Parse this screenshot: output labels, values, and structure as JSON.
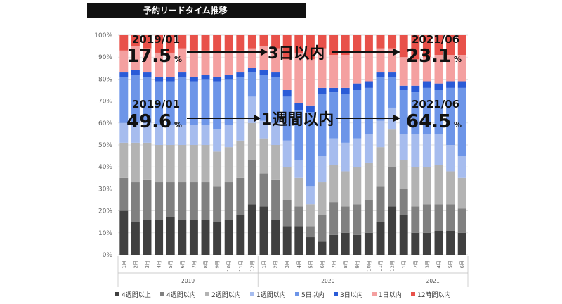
{
  "title": "予約リードタイム推移",
  "chart_data": {
    "type": "bar",
    "stacked": true,
    "normalized": true,
    "ylim": [
      0,
      100
    ],
    "ytick_labels": [
      "0%",
      "10%",
      "20%",
      "30%",
      "40%",
      "50%",
      "60%",
      "70%",
      "80%",
      "90%",
      "100%"
    ],
    "categories": [
      "1月",
      "2月",
      "3月",
      "4月",
      "5月",
      "6月",
      "7月",
      "8月",
      "9月",
      "10月",
      "11月",
      "12月",
      "1月",
      "2月",
      "3月",
      "4月",
      "5月",
      "6月",
      "7月",
      "8月",
      "9月",
      "10月",
      "11月",
      "12月",
      "1月",
      "2月",
      "3月",
      "4月",
      "5月",
      "6月"
    ],
    "year_groups": [
      {
        "label": "2019",
        "start": 0,
        "end": 11
      },
      {
        "label": "2020",
        "start": 12,
        "end": 23
      },
      {
        "label": "2021",
        "start": 24,
        "end": 29
      }
    ],
    "series": [
      {
        "name": "4週間以上",
        "color": "#404040",
        "values": [
          20,
          15,
          16,
          16,
          17,
          16,
          16,
          16,
          15,
          16,
          18,
          23,
          22,
          16,
          13,
          13,
          8,
          6,
          9,
          10,
          9,
          10,
          15,
          22,
          18,
          10,
          10,
          11,
          11,
          10
        ]
      },
      {
        "name": "4週間以内",
        "color": "#808080",
        "values": [
          15,
          18,
          18,
          17,
          16,
          17,
          17,
          17,
          16,
          17,
          17,
          20,
          15,
          18,
          12,
          9,
          5,
          12,
          15,
          12,
          14,
          15,
          16,
          18,
          12,
          12,
          13,
          12,
          12,
          11
        ]
      },
      {
        "name": "2週間以内",
        "color": "#b3b3b3",
        "values": [
          16,
          18,
          17,
          17,
          17,
          17,
          17,
          17,
          16,
          16,
          17,
          17,
          16,
          16,
          15,
          13,
          10,
          15,
          17,
          16,
          17,
          17,
          18,
          17,
          13,
          18,
          17,
          18,
          15,
          14
        ]
      },
      {
        "name": "1週間以内",
        "color": "#a6bcee",
        "values": [
          9,
          9,
          9,
          9,
          9,
          9,
          9,
          9,
          10,
          10,
          10,
          12,
          8,
          10,
          12,
          8,
          8,
          12,
          12,
          13,
          13,
          13,
          12,
          10,
          12,
          15,
          15,
          14,
          12,
          10
        ]
      },
      {
        "name": "5日以内",
        "color": "#6d95e8",
        "values": [
          21,
          22,
          21,
          20,
          20,
          22,
          20,
          21,
          22,
          21,
          19,
          11,
          21,
          21,
          20,
          23,
          34,
          28,
          21,
          22,
          22,
          21,
          20,
          14,
          20,
          19,
          21,
          20,
          26,
          31
        ]
      },
      {
        "name": "3日以内",
        "color": "#2a5bd7",
        "values": [
          2,
          2,
          2,
          2,
          2,
          2,
          2,
          2,
          2,
          2,
          2,
          2,
          2,
          2,
          3,
          3,
          3,
          3,
          2,
          3,
          3,
          3,
          2,
          2,
          2,
          3,
          3,
          3,
          3,
          3
        ]
      },
      {
        "name": "1日以内",
        "color": "#f4a0a0",
        "values": [
          10,
          11,
          11,
          11,
          11,
          11,
          12,
          11,
          11,
          11,
          10,
          9,
          11,
          11,
          14,
          23,
          21,
          18,
          15,
          15,
          14,
          13,
          11,
          11,
          13,
          12,
          11,
          13,
          12,
          12
        ]
      },
      {
        "name": "12時間以内",
        "color": "#e8514a",
        "values": [
          7,
          5,
          6,
          8,
          8,
          6,
          7,
          7,
          8,
          7,
          7,
          6,
          5,
          6,
          11,
          8,
          11,
          6,
          9,
          9,
          8,
          8,
          6,
          6,
          10,
          11,
          10,
          9,
          9,
          9
        ]
      }
    ]
  },
  "annotations": {
    "top_left_date": "2019/01",
    "top_left_value": "17.5",
    "top_left_pct": "%",
    "top_mid": "3日以内",
    "top_right_date": "2021/06",
    "top_right_value": "23.1",
    "top_right_pct": "%",
    "mid_left_date": "2019/01",
    "mid_left_value": "49.6",
    "mid_left_pct": "%",
    "mid_mid": "1週間以内",
    "mid_right_date": "2021/06",
    "mid_right_value": "64.5",
    "mid_right_pct": "%"
  }
}
